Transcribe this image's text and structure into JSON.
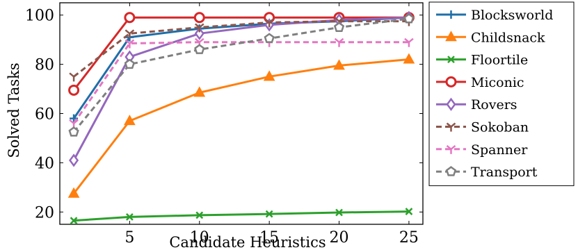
{
  "chart_data": {
    "type": "line",
    "xlabel": "Candidate Heuristics",
    "ylabel": "Solved Tasks",
    "x": [
      1,
      5,
      10,
      15,
      20,
      25
    ],
    "xlim": [
      0,
      26
    ],
    "ylim": [
      15,
      105
    ],
    "xticks": [
      5,
      10,
      15,
      20,
      25
    ],
    "yticks": [
      20,
      40,
      60,
      80,
      100
    ],
    "grid": false,
    "legend_position": "outside-right",
    "series": [
      {
        "name": "Blocksworld",
        "color": "#1f6fa8",
        "marker": "plus",
        "dash": "solid",
        "values": [
          58,
          91,
          94.5,
          96.5,
          97.5,
          99
        ]
      },
      {
        "name": "Childsnack",
        "color": "#ff7f0e",
        "marker": "triangle",
        "dash": "solid",
        "values": [
          27.5,
          57,
          68.5,
          75,
          79.5,
          82
        ]
      },
      {
        "name": "Floortile",
        "color": "#2ca02c",
        "marker": "x",
        "dash": "solid",
        "values": [
          16.5,
          18,
          18.7,
          19.2,
          19.8,
          20.2
        ]
      },
      {
        "name": "Miconic",
        "color": "#d62728",
        "marker": "circle",
        "dash": "solid",
        "values": [
          69.5,
          99,
          99,
          99,
          99,
          99
        ]
      },
      {
        "name": "Rovers",
        "color": "#9467bd",
        "marker": "diamond",
        "dash": "solid",
        "values": [
          41,
          83,
          92.5,
          96,
          98,
          99
        ]
      },
      {
        "name": "Sokoban",
        "color": "#8c564b",
        "marker": "tri-down",
        "dash": "dashed",
        "values": [
          75,
          92.5,
          95,
          97,
          97.5,
          97.5
        ]
      },
      {
        "name": "Spanner",
        "color": "#e377c2",
        "marker": "tri-down",
        "dash": "dashed",
        "values": [
          56,
          88.5,
          89,
          89,
          89,
          89
        ]
      },
      {
        "name": "Transport",
        "color": "#7f7f7f",
        "marker": "pentagon",
        "dash": "dashed",
        "values": [
          52.5,
          80,
          86,
          90.5,
          95,
          98.5
        ]
      }
    ]
  }
}
